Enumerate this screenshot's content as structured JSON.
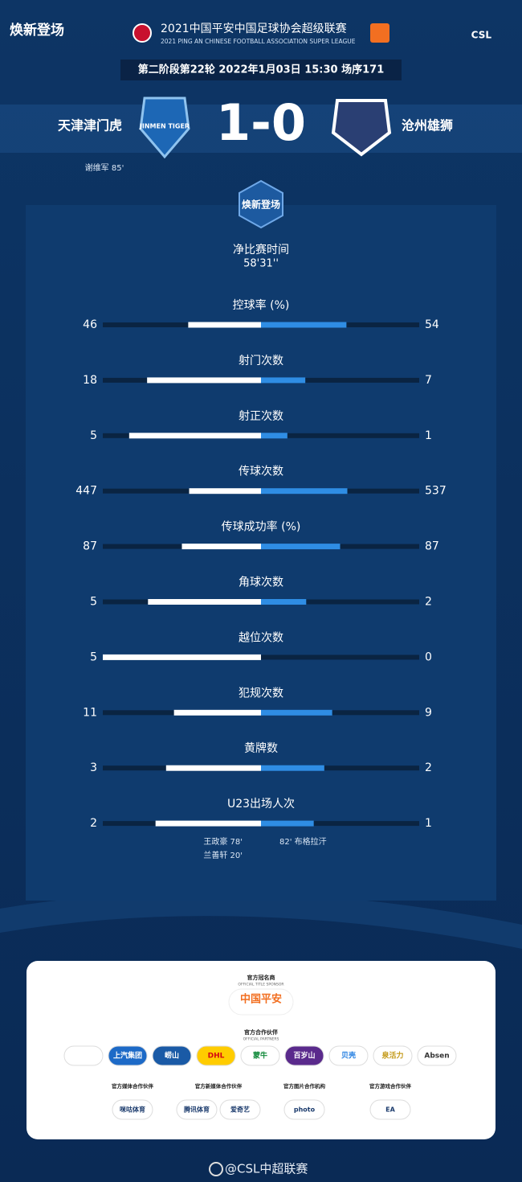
{
  "header": {
    "logo_text": "焕新登场",
    "league_cn": "2021中国平安中国足球协会超级联赛",
    "league_en": "2021 PING AN CHINESE FOOTBALL ASSOCIATION SUPER LEAGUE",
    "csl": "CSL",
    "match_info": "第二阶段第22轮  2022年1月03日 15:30 场序171"
  },
  "match": {
    "home": "天津津门虎",
    "away": "沧州雄狮",
    "score": "1-0",
    "home_crest": "JINMEN TIGER",
    "home_scorer": "谢维军  85'"
  },
  "stats": {
    "badge": "焕新登场",
    "net_time_label": "净比赛时间",
    "net_time": "58'31''",
    "items": [
      {
        "label": "控球率 (%)",
        "home": 46,
        "away": 54
      },
      {
        "label": "射门次数",
        "home": 18,
        "away": 7
      },
      {
        "label": "射正次数",
        "home": 5,
        "away": 1
      },
      {
        "label": "传球次数",
        "home": 447,
        "away": 537
      },
      {
        "label": "传球成功率 (%)",
        "home": 87,
        "away": 87
      },
      {
        "label": "角球次数",
        "home": 5,
        "away": 2
      },
      {
        "label": "越位次数",
        "home": 5,
        "away": 0
      },
      {
        "label": "犯规次数",
        "home": 11,
        "away": 9
      },
      {
        "label": "黄牌数",
        "home": 3,
        "away": 2
      },
      {
        "label": "U23出场人次",
        "home": 2,
        "away": 1
      }
    ],
    "u23_home": [
      "王政豪  78'",
      "兰善轩  20'"
    ],
    "u23_away": [
      "82'  布格拉汗"
    ]
  },
  "sponsors": {
    "title_sponsor_cn": "官方冠名商",
    "title_sponsor_en": "OFFICIAL TITLE SPONSOR",
    "title_sponsor": "中国平安",
    "partners_cn": "官方合作伙伴",
    "partners_en": "OFFICIAL PARTNERS",
    "partners": [
      "上汽集团",
      "崂山",
      "DHL",
      "蒙牛",
      "百岁山",
      "贝壳",
      "泉活力",
      "Absen"
    ],
    "groups": [
      {
        "title": "官方媒体合作伙伴",
        "logos": [
          "咪咕体育"
        ]
      },
      {
        "title": "官方新媒体合作伙伴",
        "logos": [
          "腾讯体育",
          "爱奇艺"
        ]
      },
      {
        "title": "官方图片合作机构",
        "logos": [
          "photo"
        ]
      },
      {
        "title": "官方游戏合作伙伴",
        "logos": [
          "EA"
        ]
      }
    ]
  },
  "footer": "@CSL中超联赛"
}
